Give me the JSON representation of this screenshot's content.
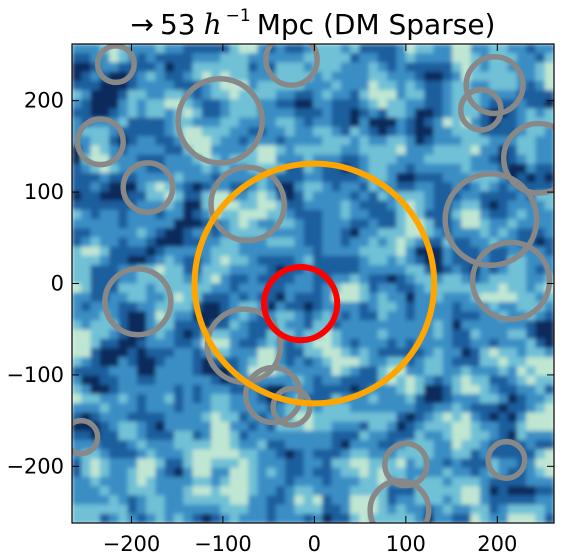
{
  "chart_data": {
    "type": "scatter",
    "title": {
      "arrow": "→",
      "value": "53",
      "h": "h",
      "exp": "−1",
      "unit": "Mpc",
      "tag": "(DM Sparse)"
    },
    "xlabel": "",
    "ylabel": "",
    "xlim": [
      -265,
      262
    ],
    "ylim": [
      -262,
      262
    ],
    "xticks": [
      -200,
      -100,
      0,
      100,
      200
    ],
    "yticks": [
      -200,
      -100,
      0,
      100,
      200
    ],
    "xticklabels": [
      "−200",
      "−100",
      "0",
      "100",
      "200"
    ],
    "yticklabels": [
      "−200",
      "−100",
      "0",
      "100",
      "200"
    ],
    "background": {
      "kind": "density-field",
      "colormap": [
        "#0b2a5c",
        "#1f5f9e",
        "#3a8ec4",
        "#6fc0d6",
        "#bfe6d2"
      ]
    },
    "circles": [
      {
        "group": "outer",
        "color": "#ffa500",
        "x": 0,
        "y": 0,
        "r": 131
      },
      {
        "group": "inner",
        "color": "#ff0000",
        "x": -15,
        "y": -22,
        "r": 40
      },
      {
        "group": "other",
        "color": "#888888",
        "x": -217,
        "y": 240,
        "r": 20
      },
      {
        "group": "other",
        "color": "#888888",
        "x": -25,
        "y": 245,
        "r": 28
      },
      {
        "group": "other",
        "color": "#888888",
        "x": -103,
        "y": 178,
        "r": 46
      },
      {
        "group": "other",
        "color": "#888888",
        "x": -234,
        "y": 155,
        "r": 25
      },
      {
        "group": "other",
        "color": "#888888",
        "x": -182,
        "y": 105,
        "r": 27
      },
      {
        "group": "other",
        "color": "#888888",
        "x": -73,
        "y": 87,
        "r": 40
      },
      {
        "group": "other",
        "color": "#888888",
        "x": -193,
        "y": -20,
        "r": 36
      },
      {
        "group": "other",
        "color": "#888888",
        "x": -77,
        "y": -68,
        "r": 40
      },
      {
        "group": "other",
        "color": "#888888",
        "x": -45,
        "y": -122,
        "r": 30
      },
      {
        "group": "other",
        "color": "#888888",
        "x": -25,
        "y": -135,
        "r": 20
      },
      {
        "group": "other",
        "color": "#888888",
        "x": -255,
        "y": -168,
        "r": 18
      },
      {
        "group": "other",
        "color": "#888888",
        "x": 197,
        "y": 217,
        "r": 31
      },
      {
        "group": "other",
        "color": "#888888",
        "x": 182,
        "y": 190,
        "r": 22
      },
      {
        "group": "other",
        "color": "#888888",
        "x": 245,
        "y": 137,
        "r": 38
      },
      {
        "group": "other",
        "color": "#888888",
        "x": 193,
        "y": 70,
        "r": 50
      },
      {
        "group": "other",
        "color": "#888888",
        "x": 215,
        "y": 3,
        "r": 42
      },
      {
        "group": "other",
        "color": "#888888",
        "x": 100,
        "y": -198,
        "r": 23
      },
      {
        "group": "other",
        "color": "#888888",
        "x": 210,
        "y": -193,
        "r": 20
      },
      {
        "group": "other",
        "color": "#888888",
        "x": 93,
        "y": -248,
        "r": 32
      }
    ]
  }
}
